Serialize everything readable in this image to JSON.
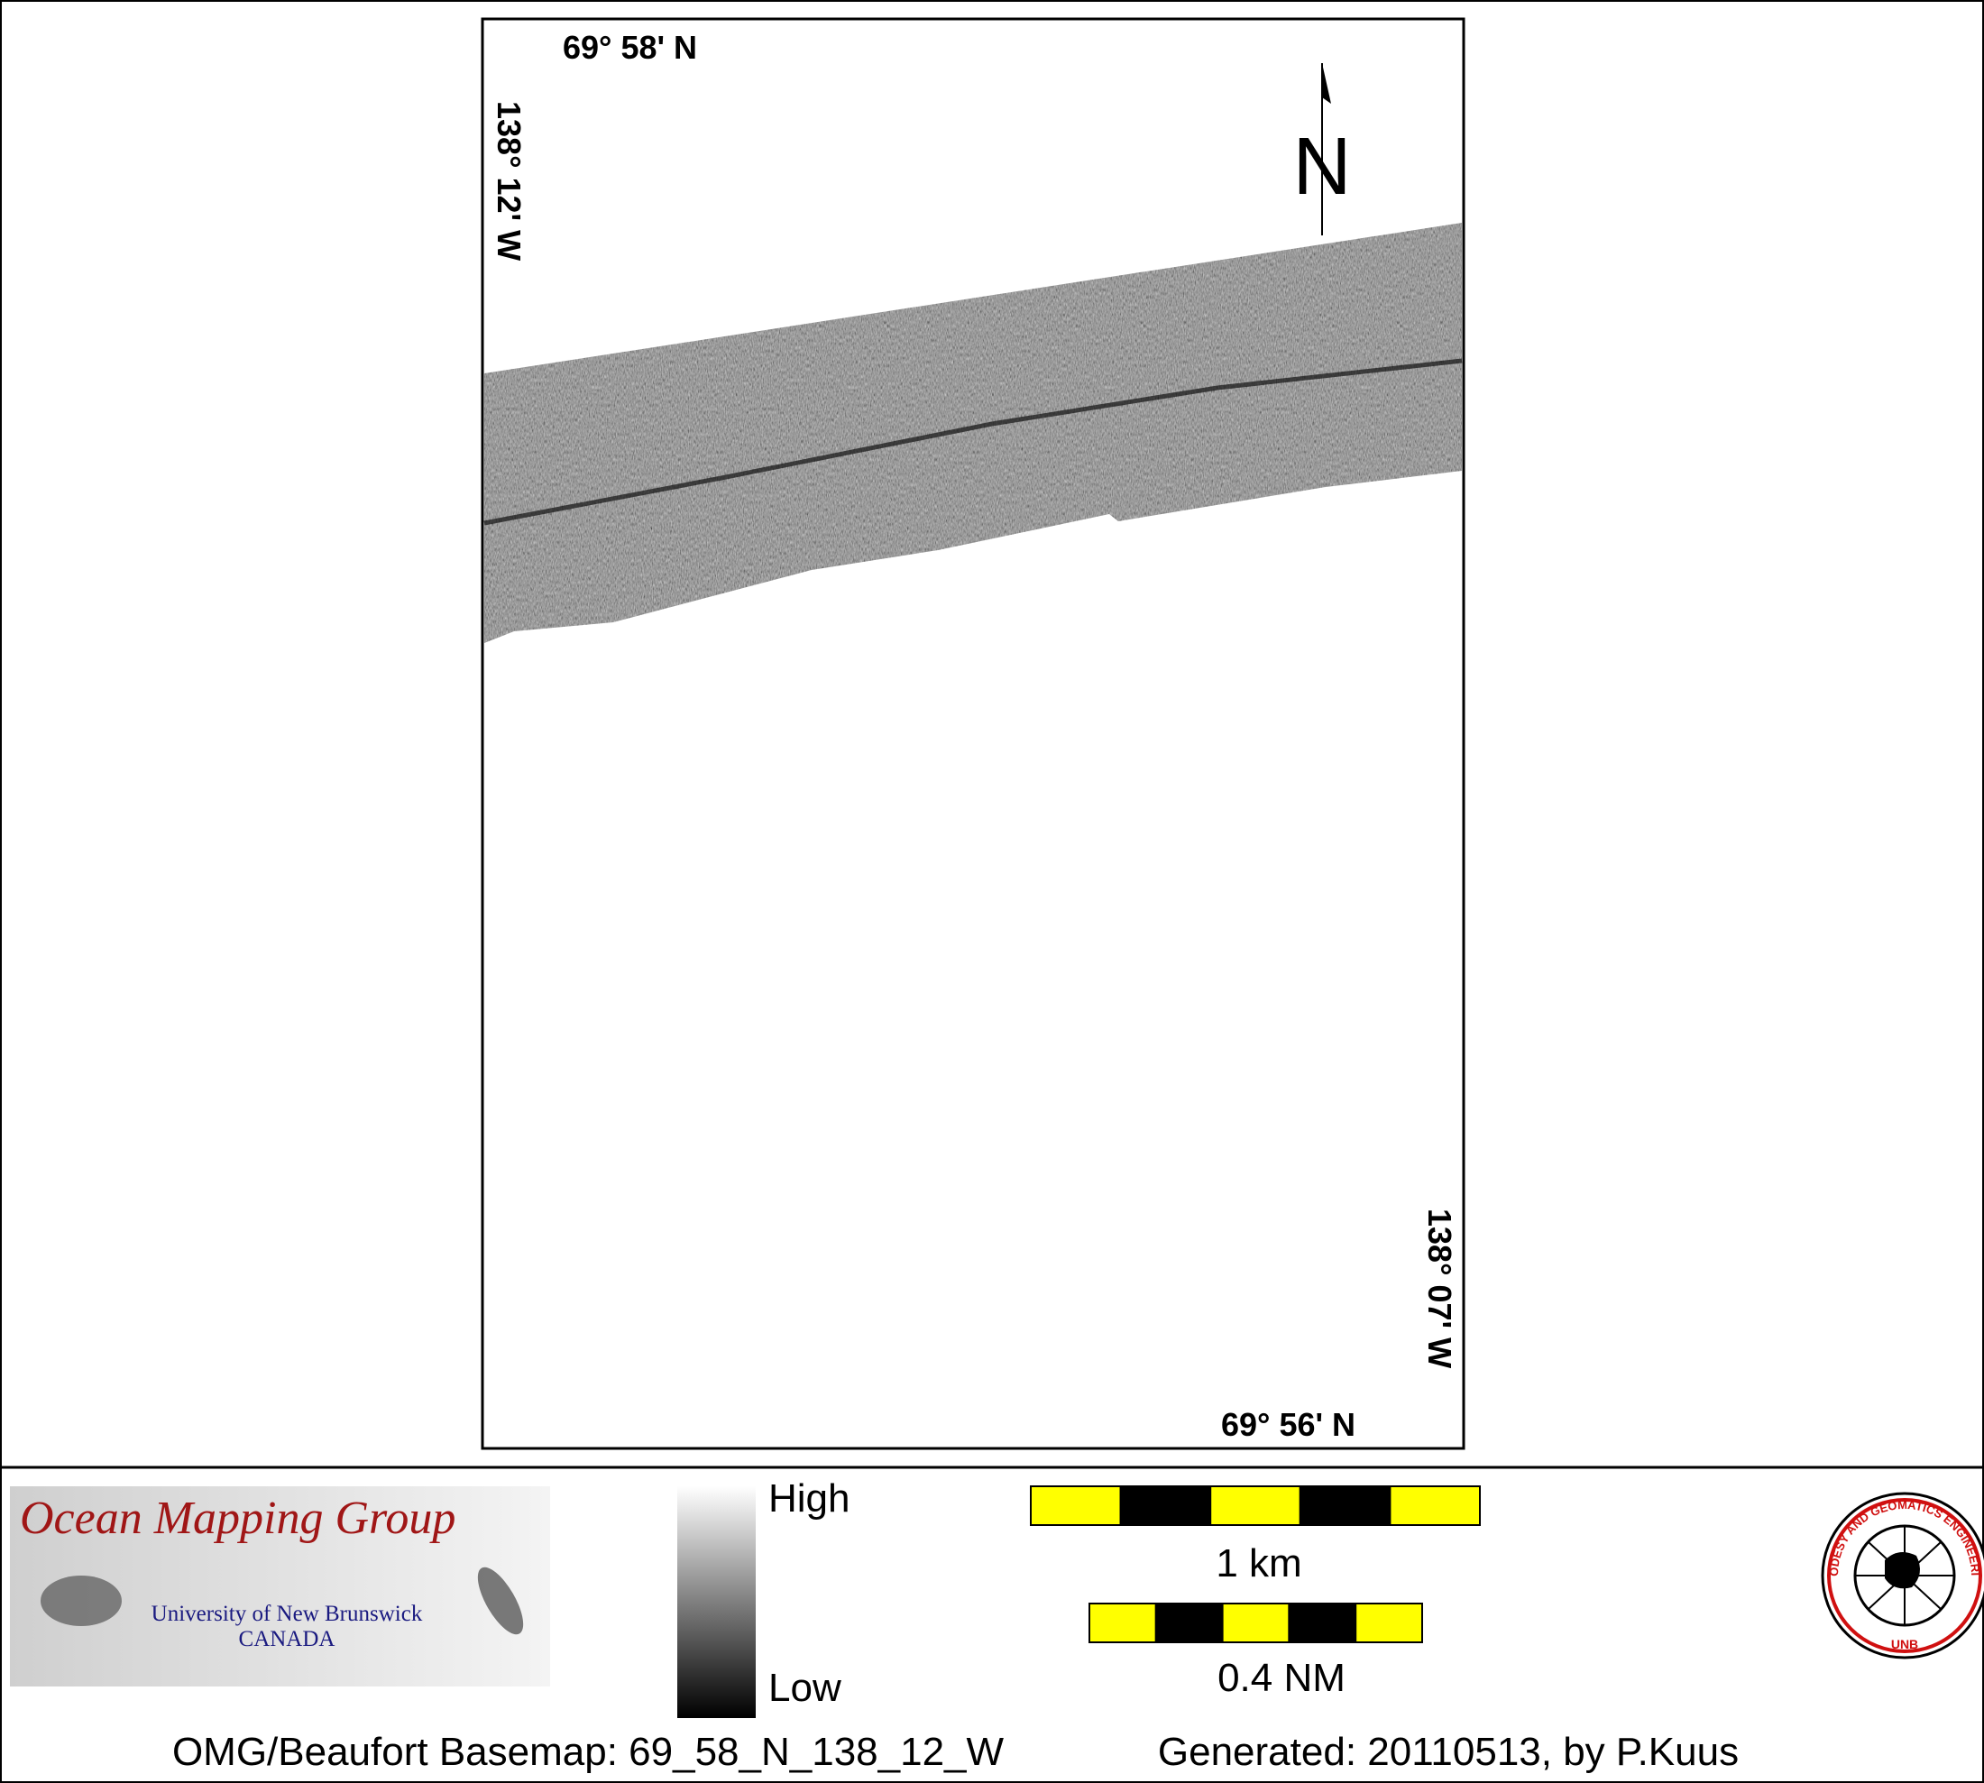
{
  "map": {
    "labels": {
      "top_lat": "69° 58' N",
      "left_lon": "138° 12' W",
      "right_lon": "138° 07' W",
      "bottom_lat": "69° 56' N",
      "north": "N"
    },
    "logo": {
      "title": "Ocean Mapping Group",
      "university": "University of New Brunswick",
      "country": "CANADA"
    },
    "colorbar": {
      "high": "High",
      "low": "Low"
    },
    "scale_bars": [
      "1 km",
      "0.4 NM"
    ],
    "emblem": {
      "ring": "GEODESY AND GEOMATICS ENGINEERING",
      "bottom": "UNB"
    },
    "footer": {
      "basemap": "OMG/Beaufort Basemap: 69_58_N_138_12_W",
      "generated": "Generated: 20110513, by P.Kuus"
    }
  }
}
